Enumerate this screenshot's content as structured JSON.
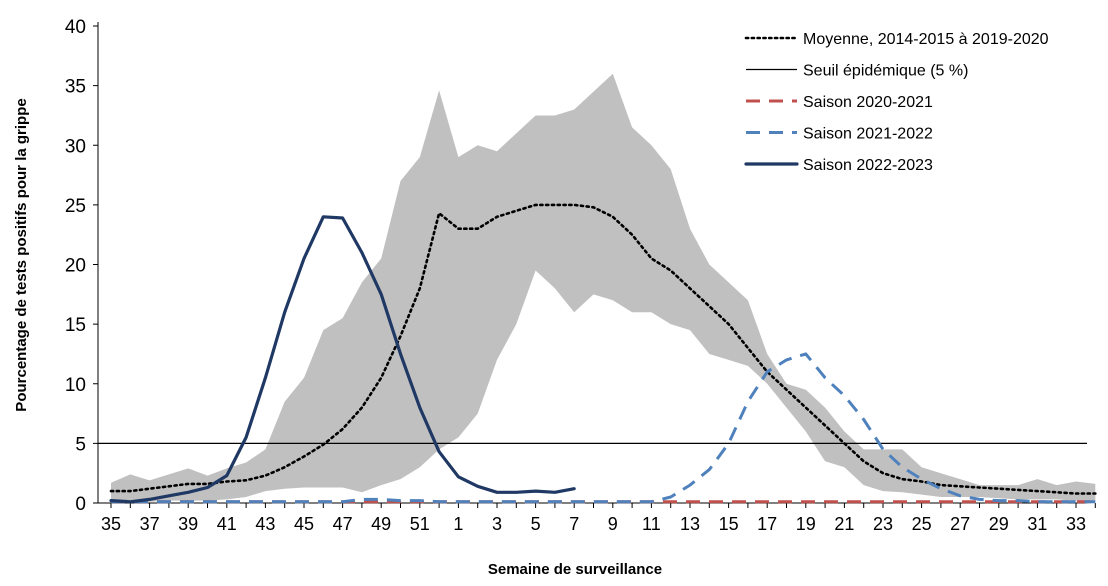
{
  "chart_data": {
    "type": "line",
    "xlabel": "Semaine de surveillance",
    "ylabel": "Pourcentage de tests positifs pour la grippe",
    "ylim": [
      0,
      40
    ],
    "yticks": [
      0,
      5,
      10,
      15,
      20,
      25,
      30,
      35,
      40
    ],
    "x_weeks": [
      35,
      36,
      37,
      38,
      39,
      40,
      41,
      42,
      43,
      44,
      45,
      46,
      47,
      48,
      49,
      50,
      51,
      52,
      1,
      2,
      3,
      4,
      5,
      6,
      7,
      8,
      9,
      10,
      11,
      12,
      13,
      14,
      15,
      16,
      17,
      18,
      19,
      20,
      21,
      22,
      23,
      24,
      25,
      26,
      27,
      28,
      29,
      30,
      31,
      32,
      33,
      34
    ],
    "x_tick_labels": [
      "35",
      "37",
      "39",
      "41",
      "43",
      "45",
      "47",
      "49",
      "51",
      "1",
      "3",
      "5",
      "7",
      "9",
      "11",
      "13",
      "15",
      "17",
      "19",
      "21",
      "23",
      "25",
      "27",
      "29",
      "31",
      "33"
    ],
    "legend_position": "top-right",
    "grid": false,
    "threshold": {
      "name": "Seuil épidémique (5 %)",
      "value": 5,
      "color": "#000000"
    },
    "band": {
      "color": "#c0c0c0",
      "upper": [
        1.7,
        2.4,
        1.9,
        2.4,
        2.9,
        2.3,
        2.9,
        3.4,
        4.5,
        8.5,
        10.5,
        14.5,
        15.5,
        18.5,
        20.5,
        27.0,
        29.0,
        34.6,
        29.0,
        30.0,
        29.5,
        31.0,
        32.5,
        32.5,
        33.0,
        34.5,
        36.0,
        31.5,
        30.0,
        28.0,
        23.0,
        20.0,
        18.5,
        17.0,
        12.5,
        10.0,
        9.5,
        8.0,
        6.0,
        4.5,
        4.5,
        4.5,
        3.0,
        2.5,
        2.0,
        1.5,
        1.5,
        1.5,
        2.0,
        1.5,
        1.8,
        1.6
      ],
      "lower": [
        0.1,
        0.1,
        0.1,
        0.2,
        0.2,
        0.2,
        0.3,
        0.5,
        1.0,
        1.2,
        1.3,
        1.3,
        1.3,
        0.9,
        1.5,
        2.0,
        3.0,
        4.5,
        5.5,
        7.5,
        12.0,
        15.0,
        19.5,
        18.0,
        16.0,
        17.5,
        17.0,
        16.0,
        16.0,
        15.0,
        14.5,
        12.5,
        12.0,
        11.5,
        10.0,
        8.0,
        6.0,
        3.5,
        3.0,
        1.5,
        1.0,
        0.9,
        0.7,
        0.5,
        0.5,
        0.5,
        0.4,
        0.3,
        0.3,
        0.3,
        0.2,
        0.2
      ]
    },
    "series": [
      {
        "name": "Moyenne, 2014-2015 à 2019-2020",
        "style": "dotted",
        "color": "#000000",
        "values": [
          1.0,
          1.0,
          1.2,
          1.4,
          1.6,
          1.6,
          1.8,
          1.9,
          2.3,
          3.0,
          3.9,
          4.9,
          6.2,
          8.0,
          10.5,
          14.0,
          18.0,
          24.3,
          23.0,
          23.0,
          24.0,
          24.5,
          25.0,
          25.0,
          25.0,
          24.8,
          24.0,
          22.5,
          20.5,
          19.5,
          18.0,
          16.5,
          15.0,
          13.0,
          11.0,
          9.5,
          8.0,
          6.5,
          5.0,
          3.5,
          2.5,
          2.0,
          1.8,
          1.5,
          1.4,
          1.3,
          1.2,
          1.1,
          1.0,
          0.9,
          0.8,
          0.8
        ]
      },
      {
        "name": "Seuil épidémique (5 %)",
        "style": "solid-thin",
        "color": "#000000",
        "values": [
          5,
          5,
          5,
          5,
          5,
          5,
          5,
          5,
          5,
          5,
          5,
          5,
          5,
          5,
          5,
          5,
          5,
          5,
          5,
          5,
          5,
          5,
          5,
          5,
          5,
          5,
          5,
          5,
          5,
          5,
          5,
          5,
          5,
          5,
          5,
          5,
          5,
          5,
          5,
          5,
          5,
          5,
          5,
          5,
          5,
          5,
          5,
          5,
          5,
          5,
          5,
          5
        ]
      },
      {
        "name": "Saison 2020-2021",
        "style": "dashed",
        "color": "#c0504d",
        "values": [
          0.1,
          0.1,
          0.1,
          0.1,
          0.1,
          0.1,
          0.1,
          0.1,
          0.1,
          0.1,
          0.1,
          0.1,
          0.1,
          0.1,
          0.1,
          0.1,
          0.1,
          0.1,
          0.1,
          0.1,
          0.1,
          0.1,
          0.1,
          0.1,
          0.1,
          0.1,
          0.1,
          0.1,
          0.1,
          0.1,
          0.1,
          0.1,
          0.1,
          0.1,
          0.1,
          0.1,
          0.1,
          0.1,
          0.1,
          0.1,
          0.1,
          0.1,
          0.1,
          0.1,
          0.1,
          0.1,
          0.1,
          0.1,
          0.1,
          0.1,
          0.1,
          0.1
        ]
      },
      {
        "name": "Saison 2021-2022",
        "style": "dashed",
        "color": "#4f81bd",
        "values": [
          0.1,
          0.1,
          0.1,
          0.1,
          0.1,
          0.1,
          0.1,
          0.1,
          0.1,
          0.1,
          0.1,
          0.1,
          0.1,
          0.3,
          0.3,
          0.2,
          0.2,
          0.1,
          0.1,
          0.1,
          0.1,
          0.1,
          0.1,
          0.1,
          0.1,
          0.1,
          0.1,
          0.1,
          0.1,
          0.5,
          1.5,
          2.8,
          5.0,
          8.5,
          11.0,
          12.0,
          12.5,
          10.5,
          9.0,
          7.0,
          4.5,
          3.0,
          2.0,
          1.2,
          0.6,
          0.3,
          0.2,
          0.2,
          0.1,
          0.1,
          0.1,
          0.1
        ]
      },
      {
        "name": "Saison 2022-2023",
        "style": "solid",
        "color": "#1f3864",
        "values": [
          0.2,
          0.1,
          0.3,
          0.6,
          0.9,
          1.3,
          2.3,
          5.5,
          10.5,
          16.0,
          20.5,
          24.0,
          23.9,
          21.0,
          17.5,
          12.5,
          8.0,
          4.3,
          2.2,
          1.4,
          0.9,
          0.9,
          1.0,
          0.9,
          1.2,
          null,
          null,
          null,
          null,
          null,
          null,
          null,
          null,
          null,
          null,
          null,
          null,
          null,
          null,
          null,
          null,
          null,
          null,
          null,
          null,
          null,
          null,
          null,
          null,
          null,
          null,
          null
        ]
      }
    ]
  }
}
